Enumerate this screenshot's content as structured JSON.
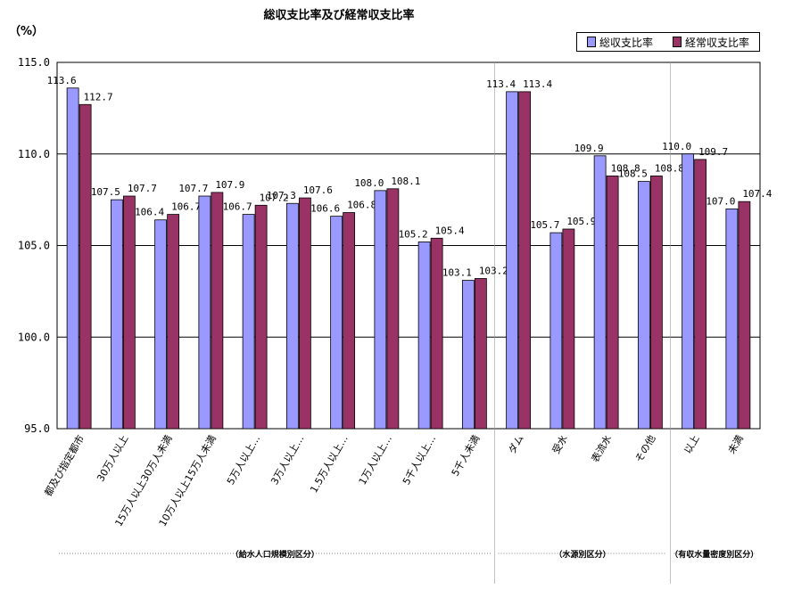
{
  "chart_data": {
    "type": "bar",
    "title": "総収支比率及び経常収支比率",
    "ylabel": "（%）",
    "ylim": [
      95.0,
      115.0
    ],
    "yticks": [
      "95.0",
      "100.0",
      "105.0",
      "110.0",
      "115.0"
    ],
    "grid": true,
    "legend_position": "top-right",
    "categories": [
      "都及び指定都市",
      "30万人以上",
      "15万人以上30万人未満",
      "10万人以上15万人未満",
      "5万人以上…",
      "3万人以上…",
      "1.5万人以上…",
      "1万人以上…",
      "5千人以上…",
      "5千人未満",
      "ダム",
      "受水",
      "表流水",
      "その他",
      "以上",
      "未満"
    ],
    "series": [
      {
        "name": "総収支比率",
        "color": "#9999ff",
        "values": [
          113.6,
          107.5,
          106.4,
          107.7,
          106.7,
          107.3,
          106.6,
          108.0,
          105.2,
          103.1,
          113.4,
          105.7,
          109.9,
          108.5,
          110.0,
          107.0
        ],
        "labels": [
          "113.6",
          "107.5",
          "106.4",
          "107.7",
          "106.7",
          "107.3",
          "106.6",
          "108.0",
          "105.2",
          "103.1",
          "113.4",
          "105.7",
          "109.9",
          "108.5",
          "110.0",
          "107.0"
        ]
      },
      {
        "name": "経常収支比率",
        "color": "#993366",
        "values": [
          112.7,
          107.7,
          106.7,
          107.9,
          107.2,
          107.6,
          106.8,
          108.1,
          105.4,
          103.2,
          113.4,
          105.9,
          108.8,
          108.8,
          109.7,
          107.4
        ],
        "labels": [
          "112.7",
          "107.7",
          "106.7",
          "107.9",
          "107.2",
          "107.6",
          "106.8",
          "108.1",
          "105.4",
          "103.2",
          "113.4",
          "105.9",
          "108.8",
          "108.8",
          "109.7",
          "107.4"
        ]
      }
    ],
    "groups": [
      {
        "label": "（給水人口規模別区分）",
        "from": 0,
        "to": 9
      },
      {
        "label": "（水源別区分）",
        "from": 10,
        "to": 13
      },
      {
        "label": "（有収水量密度別区分）",
        "from": 14,
        "to": 15
      }
    ]
  }
}
